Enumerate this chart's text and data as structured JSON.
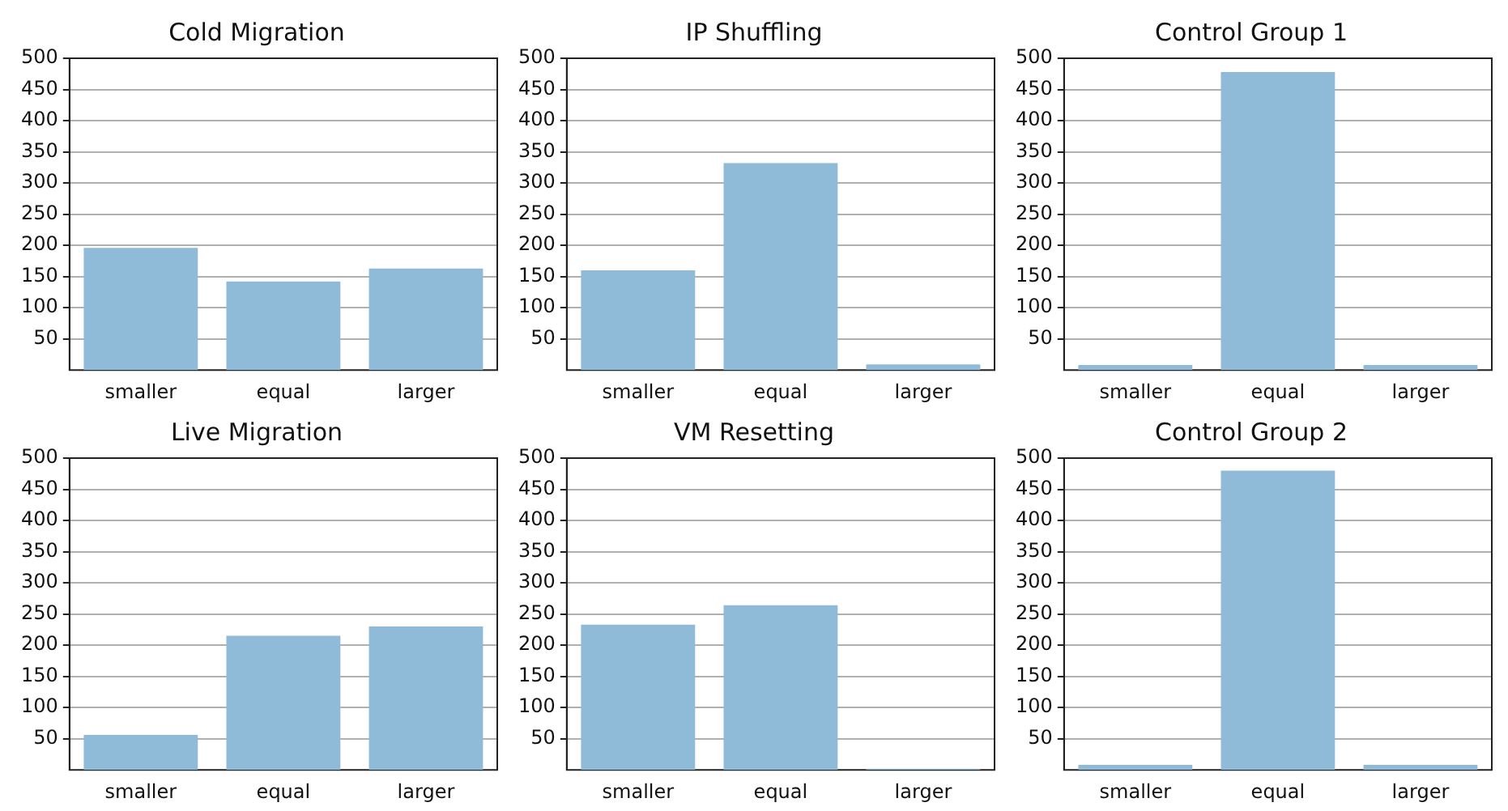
{
  "chart_data": [
    {
      "type": "bar",
      "title": "Cold Migration",
      "categories": [
        "smaller",
        "equal",
        "larger"
      ],
      "values": [
        196,
        142,
        163
      ],
      "color": "#8fbbd9",
      "ylim": [
        0,
        500
      ],
      "yticks": [
        50,
        100,
        150,
        200,
        250,
        300,
        350,
        400,
        450,
        500
      ],
      "grid": "y"
    },
    {
      "type": "bar",
      "title": "IP Shuffling",
      "categories": [
        "smaller",
        "equal",
        "larger"
      ],
      "values": [
        160,
        332,
        9
      ],
      "color": "#8fbbd9",
      "ylim": [
        0,
        500
      ],
      "yticks": [
        50,
        100,
        150,
        200,
        250,
        300,
        350,
        400,
        450,
        500
      ],
      "grid": "y"
    },
    {
      "type": "bar",
      "title": "Control Group 1",
      "categories": [
        "smaller",
        "equal",
        "larger"
      ],
      "values": [
        8,
        478,
        8
      ],
      "color": "#8fbbd9",
      "ylim": [
        0,
        500
      ],
      "yticks": [
        50,
        100,
        150,
        200,
        250,
        300,
        350,
        400,
        450,
        500
      ],
      "grid": "y"
    },
    {
      "type": "bar",
      "title": "Live Migration",
      "categories": [
        "smaller",
        "equal",
        "larger"
      ],
      "values": [
        56,
        215,
        230
      ],
      "color": "#8fbbd9",
      "ylim": [
        0,
        500
      ],
      "yticks": [
        50,
        100,
        150,
        200,
        250,
        300,
        350,
        400,
        450,
        500
      ],
      "grid": "y"
    },
    {
      "type": "bar",
      "title": "VM Resetting",
      "categories": [
        "smaller",
        "equal",
        "larger"
      ],
      "values": [
        233,
        264,
        2
      ],
      "color": "#8fbbd9",
      "ylim": [
        0,
        500
      ],
      "yticks": [
        50,
        100,
        150,
        200,
        250,
        300,
        350,
        400,
        450,
        500
      ],
      "grid": "y"
    },
    {
      "type": "bar",
      "title": "Control Group 2",
      "categories": [
        "smaller",
        "equal",
        "larger"
      ],
      "values": [
        8,
        480,
        8
      ],
      "color": "#8fbbd9",
      "ylim": [
        0,
        500
      ],
      "yticks": [
        50,
        100,
        150,
        200,
        250,
        300,
        350,
        400,
        450,
        500
      ],
      "grid": "y"
    }
  ]
}
